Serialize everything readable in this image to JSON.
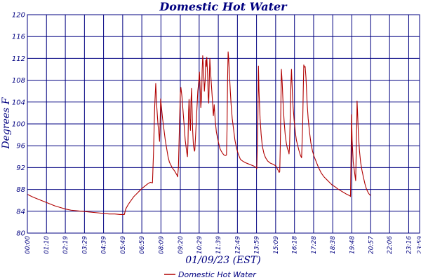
{
  "colors": {
    "series": "#b00000",
    "grid": "#000080",
    "text": "#000080",
    "background": "#ffffff"
  },
  "chart_data": {
    "type": "line",
    "title": "Domestic Hot Water",
    "xlabel": "01/09/23 (EST)",
    "ylabel": "Degrees F",
    "ylim": [
      80,
      120
    ],
    "xlim": [
      0,
      1436
    ],
    "yticks": [
      80,
      84,
      88,
      92,
      96,
      100,
      104,
      108,
      112,
      116,
      120
    ],
    "xtick_labels": [
      "00:00",
      "01:10",
      "02:19",
      "03:29",
      "04:39",
      "05:49",
      "06:59",
      "08:09",
      "09:20",
      "10:29",
      "11:39",
      "12:49",
      "13:59",
      "15:09",
      "16:18",
      "17:28",
      "18:38",
      "19:48",
      "20:57",
      "22:06",
      "23:16",
      "23:59"
    ],
    "xtick_minutes": [
      0,
      70,
      139,
      209,
      279,
      349,
      419,
      489,
      560,
      629,
      699,
      769,
      839,
      909,
      978,
      1048,
      1118,
      1188,
      1257,
      1326,
      1396,
      1439
    ],
    "grid": true,
    "legend_position": "bottom",
    "series": [
      {
        "name": "Domestic Hot Water",
        "points": [
          [
            0,
            87.1
          ],
          [
            20,
            86.6
          ],
          [
            40,
            86.2
          ],
          [
            60,
            85.8
          ],
          [
            80,
            85.4
          ],
          [
            100,
            85.0
          ],
          [
            120,
            84.7
          ],
          [
            140,
            84.4
          ],
          [
            160,
            84.2
          ],
          [
            180,
            84.1
          ],
          [
            200,
            84.0
          ],
          [
            220,
            83.9
          ],
          [
            240,
            83.8
          ],
          [
            260,
            83.7
          ],
          [
            280,
            83.6
          ],
          [
            300,
            83.5
          ],
          [
            320,
            83.5
          ],
          [
            340,
            83.4
          ],
          [
            355,
            83.4
          ],
          [
            360,
            84.4
          ],
          [
            370,
            85.3
          ],
          [
            380,
            86.0
          ],
          [
            390,
            86.7
          ],
          [
            400,
            87.2
          ],
          [
            410,
            87.7
          ],
          [
            420,
            88.2
          ],
          [
            430,
            88.6
          ],
          [
            440,
            89.0
          ],
          [
            450,
            89.3
          ],
          [
            458,
            89.2
          ],
          [
            462,
            95.0
          ],
          [
            466,
            103.0
          ],
          [
            470,
            107.4
          ],
          [
            474,
            103.0
          ],
          [
            478,
            100.0
          ],
          [
            482,
            98.0
          ],
          [
            484,
            96.8
          ],
          [
            486,
            100.0
          ],
          [
            488,
            104.6
          ],
          [
            490,
            103.5
          ],
          [
            495,
            101.0
          ],
          [
            500,
            99.0
          ],
          [
            505,
            97.0
          ],
          [
            510,
            95.5
          ],
          [
            515,
            94.0
          ],
          [
            520,
            93.0
          ],
          [
            530,
            92.0
          ],
          [
            540,
            91.3
          ],
          [
            548,
            90.6
          ],
          [
            550,
            90.3
          ],
          [
            553,
            92.0
          ],
          [
            557,
            100.0
          ],
          [
            560,
            105.5
          ],
          [
            562,
            106.7
          ],
          [
            566,
            105.0
          ],
          [
            572,
            101.0
          ],
          [
            578,
            97.0
          ],
          [
            583,
            95.0
          ],
          [
            586,
            94.0
          ],
          [
            588,
            96.5
          ],
          [
            590,
            102.0
          ],
          [
            592,
            104.5
          ],
          [
            594,
            101.5
          ],
          [
            597,
            98.8
          ],
          [
            599,
            104.0
          ],
          [
            601,
            106.5
          ],
          [
            603,
            103.0
          ],
          [
            605,
            99.0
          ],
          [
            608,
            96.0
          ],
          [
            612,
            95.0
          ],
          [
            613,
            95.2
          ],
          [
            616,
            98.0
          ],
          [
            620,
            102.0
          ],
          [
            624,
            106.0
          ],
          [
            628,
            108.0
          ],
          [
            630,
            109.5
          ],
          [
            633,
            106.0
          ],
          [
            635,
            103.0
          ],
          [
            638,
            105.0
          ],
          [
            640,
            110.0
          ],
          [
            642,
            112.5
          ],
          [
            645,
            110.0
          ],
          [
            648,
            106.0
          ],
          [
            651,
            108.0
          ],
          [
            653,
            111.7
          ],
          [
            655,
            110.5
          ],
          [
            657,
            112.2
          ],
          [
            660,
            109.0
          ],
          [
            662,
            105.0
          ],
          [
            664,
            103.8
          ],
          [
            666,
            108.0
          ],
          [
            668,
            112.0
          ],
          [
            670,
            110.0
          ],
          [
            674,
            107.0
          ],
          [
            678,
            104.0
          ],
          [
            681,
            101.5
          ],
          [
            684,
            103.5
          ],
          [
            688,
            100.5
          ],
          [
            692,
            98.5
          ],
          [
            696,
            97.5
          ],
          [
            700,
            96.5
          ],
          [
            705,
            95.5
          ],
          [
            710,
            95.0
          ],
          [
            715,
            94.6
          ],
          [
            720,
            94.3
          ],
          [
            725,
            94.2
          ],
          [
            729,
            94.3
          ],
          [
            731,
            99.0
          ],
          [
            733,
            108.0
          ],
          [
            735,
            113.2
          ],
          [
            737,
            112.0
          ],
          [
            740,
            109.0
          ],
          [
            743,
            106.0
          ],
          [
            746,
            103.5
          ],
          [
            750,
            101.0
          ],
          [
            755,
            99.0
          ],
          [
            760,
            97.0
          ],
          [
            766,
            95.5
          ],
          [
            772,
            94.5
          ],
          [
            780,
            93.5
          ],
          [
            788,
            93.2
          ],
          [
            798,
            92.9
          ],
          [
            808,
            92.7
          ],
          [
            818,
            92.5
          ],
          [
            828,
            92.3
          ],
          [
            838,
            92.0
          ],
          [
            840,
            91.8
          ],
          [
            844,
            101.0
          ],
          [
            846,
            110.6
          ],
          [
            848,
            106.0
          ],
          [
            852,
            101.0
          ],
          [
            856,
            98.0
          ],
          [
            860,
            96.0
          ],
          [
            866,
            94.6
          ],
          [
            872,
            93.8
          ],
          [
            880,
            93.2
          ],
          [
            890,
            92.8
          ],
          [
            900,
            92.6
          ],
          [
            910,
            92.3
          ],
          [
            916,
            91.7
          ],
          [
            922,
            91.1
          ],
          [
            924,
            91.3
          ],
          [
            926,
            96.0
          ],
          [
            928,
            103.0
          ],
          [
            930,
            110.0
          ],
          [
            933,
            107.5
          ],
          [
            936,
            104.0
          ],
          [
            940,
            100.5
          ],
          [
            944,
            98.0
          ],
          [
            948,
            96.5
          ],
          [
            952,
            95.5
          ],
          [
            956,
            95.0
          ],
          [
            958,
            94.5
          ],
          [
            960,
            96.0
          ],
          [
            963,
            103.0
          ],
          [
            965,
            107.5
          ],
          [
            967,
            110.0
          ],
          [
            970,
            106.0
          ],
          [
            973,
            103.0
          ],
          [
            977,
            100.5
          ],
          [
            981,
            98.5
          ],
          [
            985,
            97.0
          ],
          [
            990,
            96.0
          ],
          [
            995,
            95.0
          ],
          [
            1000,
            94.2
          ],
          [
            1004,
            93.8
          ],
          [
            1008,
            100.0
          ],
          [
            1010,
            106.0
          ],
          [
            1012,
            110.8
          ],
          [
            1014,
            110.4
          ],
          [
            1017,
            110.5
          ],
          [
            1020,
            108.5
          ],
          [
            1024,
            104.0
          ],
          [
            1028,
            101.0
          ],
          [
            1033,
            98.5
          ],
          [
            1038,
            96.5
          ],
          [
            1044,
            95.0
          ],
          [
            1050,
            94.0
          ],
          [
            1058,
            93.0
          ],
          [
            1066,
            92.0
          ],
          [
            1076,
            91.0
          ],
          [
            1086,
            90.3
          ],
          [
            1096,
            89.8
          ],
          [
            1106,
            89.3
          ],
          [
            1116,
            88.8
          ],
          [
            1126,
            88.5
          ],
          [
            1136,
            88.1
          ],
          [
            1146,
            87.8
          ],
          [
            1156,
            87.5
          ],
          [
            1166,
            87.2
          ],
          [
            1174,
            87.0
          ],
          [
            1182,
            86.8
          ],
          [
            1183,
            86.7
          ],
          [
            1185,
            94.0
          ],
          [
            1187,
            101.7
          ],
          [
            1189,
            97.0
          ],
          [
            1191,
            95.0
          ],
          [
            1193,
            93.0
          ],
          [
            1197,
            91.5
          ],
          [
            1200,
            90.3
          ],
          [
            1202,
            89.6
          ],
          [
            1204,
            95.0
          ],
          [
            1206,
            100.0
          ],
          [
            1207,
            104.2
          ],
          [
            1209,
            102.0
          ],
          [
            1212,
            98.0
          ],
          [
            1216,
            95.0
          ],
          [
            1220,
            93.0
          ],
          [
            1225,
            91.5
          ],
          [
            1230,
            90.3
          ],
          [
            1236,
            89.0
          ],
          [
            1242,
            88.0
          ],
          [
            1248,
            87.4
          ],
          [
            1252,
            87.1
          ],
          [
            1256,
            86.9
          ]
        ]
      }
    ]
  }
}
